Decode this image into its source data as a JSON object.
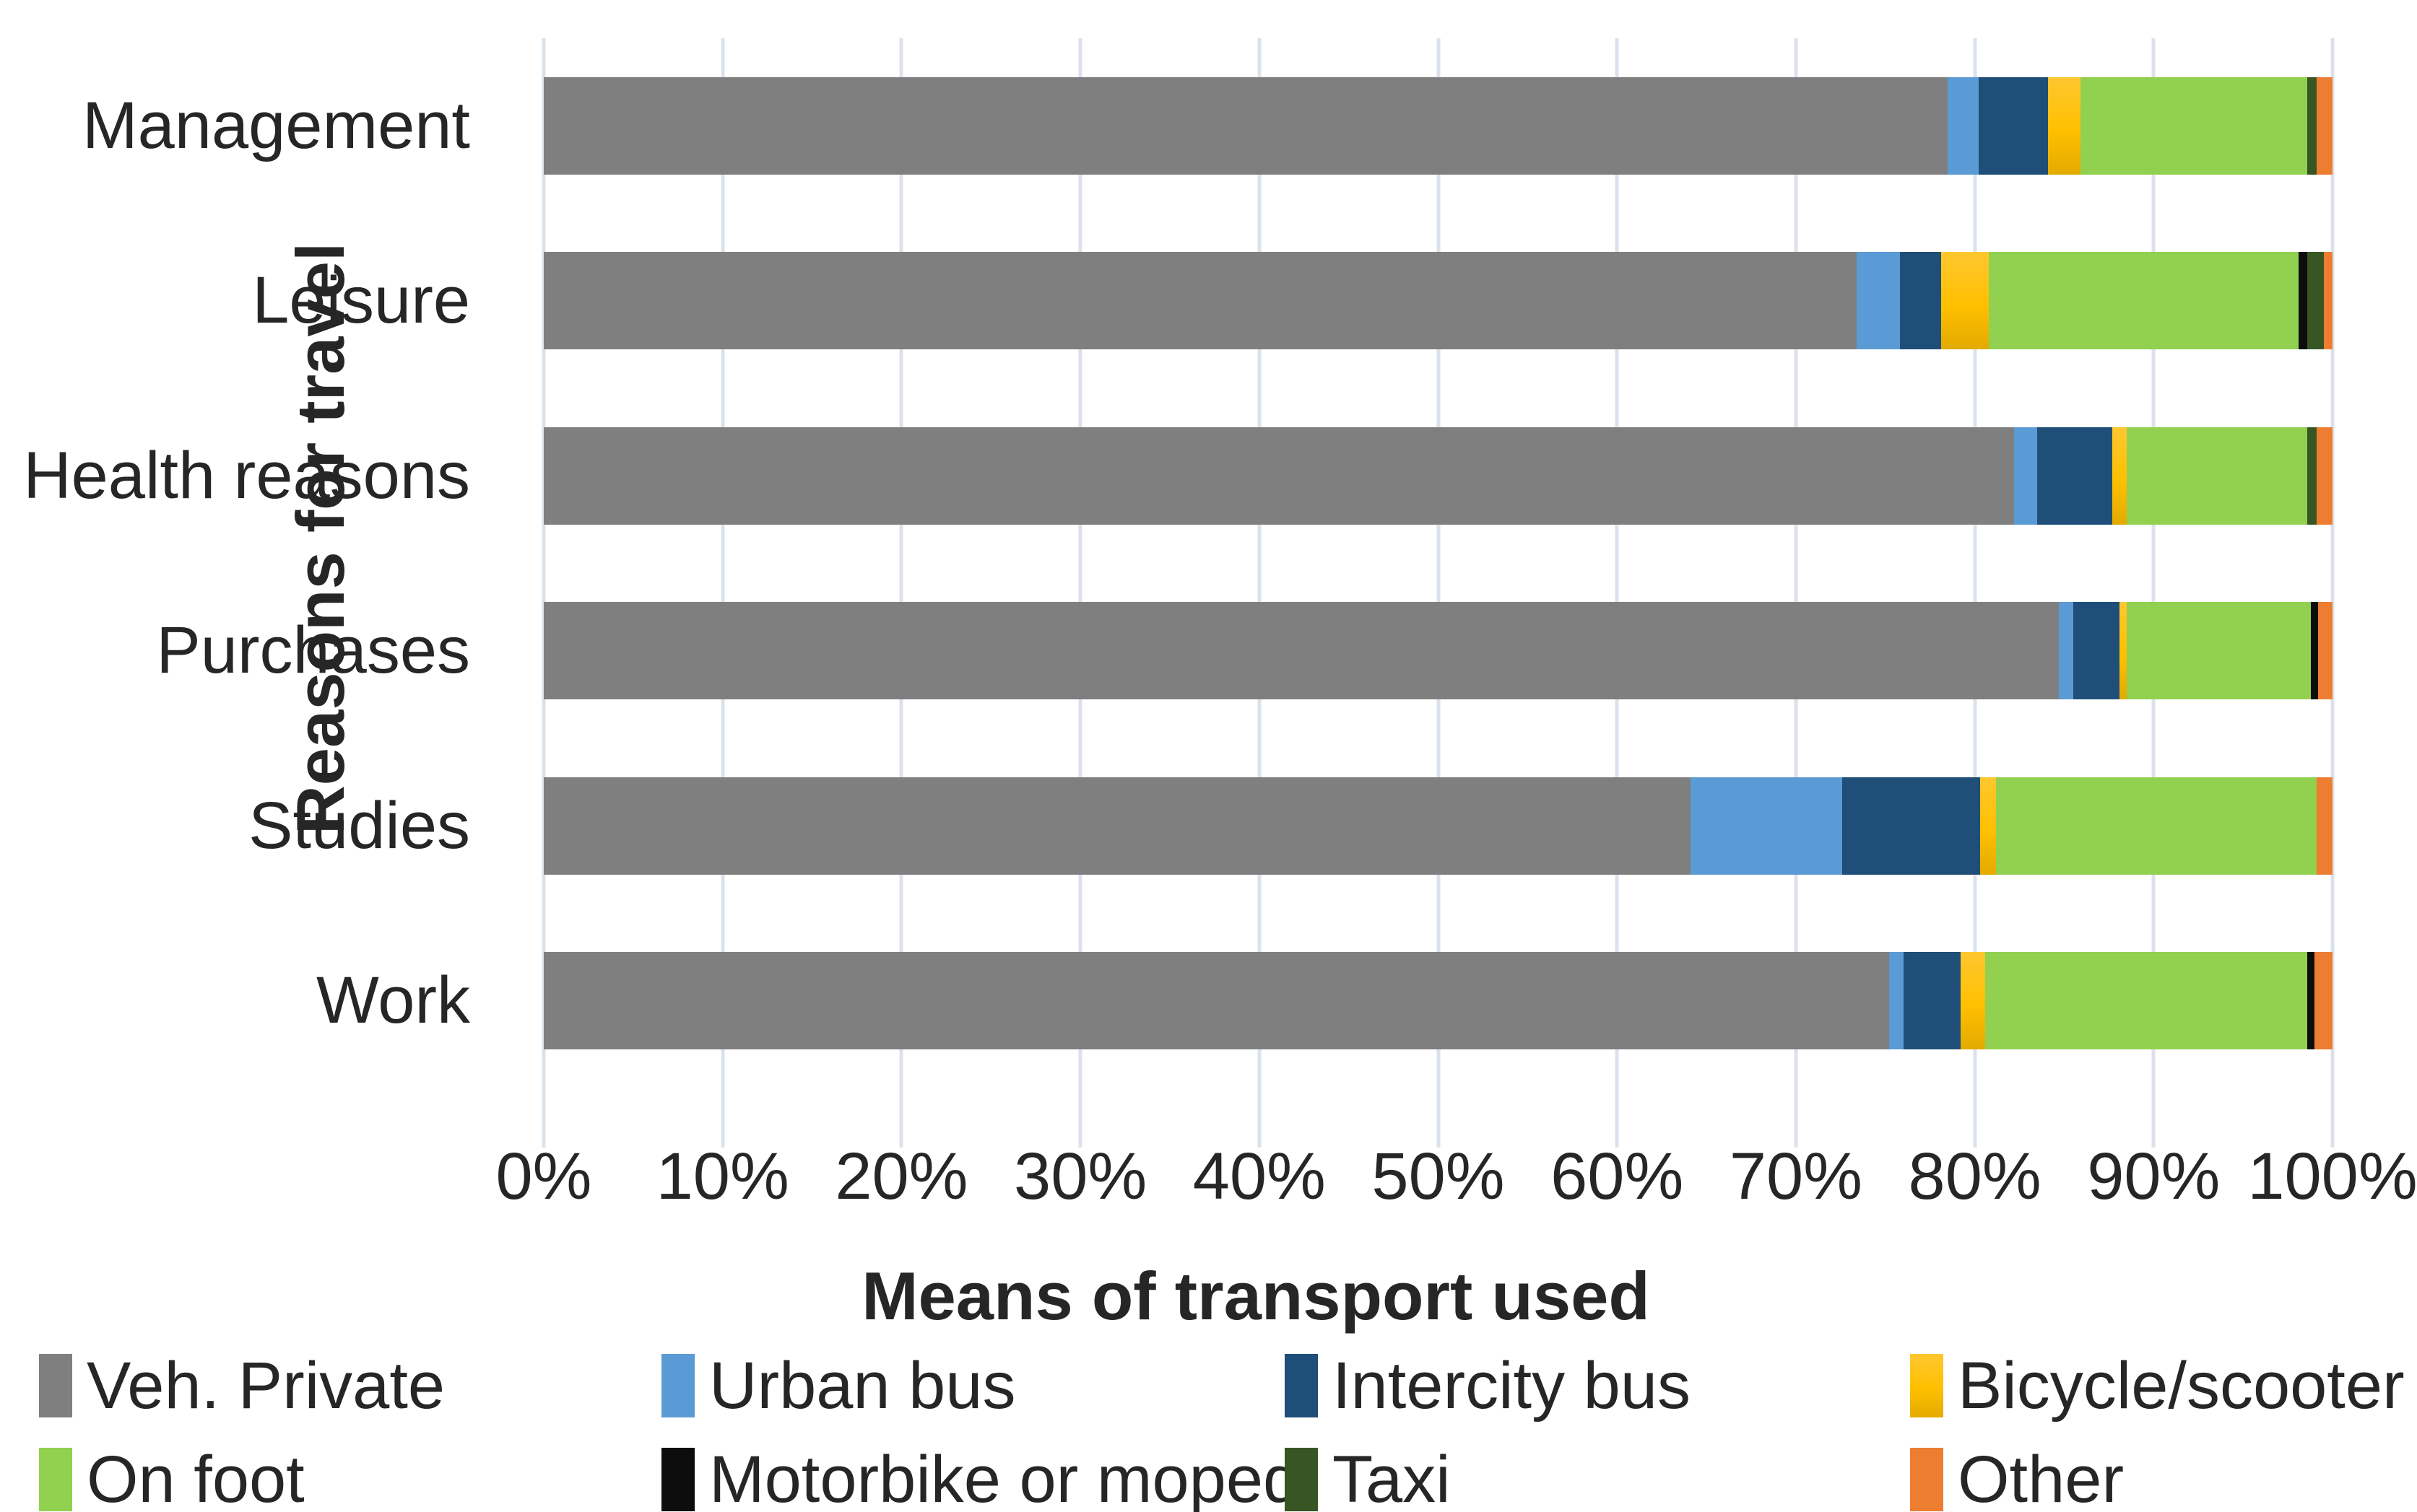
{
  "chart_data": {
    "type": "bar",
    "orientation": "horizontal",
    "stacked": true,
    "unit": "percent",
    "title": "",
    "xlabel": "Means of transport used",
    "ylabel": "Reasons for travel",
    "xlim": [
      0,
      100
    ],
    "grid": true,
    "legend_position": "bottom",
    "x_ticks": [
      "0%",
      "10%",
      "20%",
      "30%",
      "40%",
      "50%",
      "60%",
      "70%",
      "80%",
      "90%",
      "100%"
    ],
    "categories": [
      "Management",
      "Leisure",
      "Health reasons",
      "Purchases",
      "Studies",
      "Work"
    ],
    "series": [
      {
        "name": "Veh. Private",
        "color": "#7F7F7F",
        "values": [
          78.5,
          73.4,
          82.2,
          84.7,
          64.1,
          75.2
        ]
      },
      {
        "name": "Urban bus",
        "color": "#5B9BD5",
        "values": [
          1.7,
          2.4,
          1.3,
          0.8,
          8.5,
          0.8
        ]
      },
      {
        "name": "Intercity bus",
        "color": "#1F4E79",
        "values": [
          3.9,
          2.3,
          4.2,
          2.6,
          7.7,
          3.2
        ]
      },
      {
        "name": "Bicycle/scooter",
        "color": "#FFC000",
        "values": [
          1.8,
          2.7,
          0.8,
          0.4,
          0.9,
          1.4
        ]
      },
      {
        "name": "On foot",
        "color": "#92D050",
        "values": [
          12.7,
          17.3,
          10.1,
          10.3,
          17.9,
          18.0
        ]
      },
      {
        "name": "Motorbike or moped",
        "color": "#0D0D0D",
        "values": [
          0.0,
          0.5,
          0.0,
          0.4,
          0.0,
          0.4
        ]
      },
      {
        "name": "Taxi",
        "color": "#375623",
        "values": [
          0.5,
          0.9,
          0.5,
          0.0,
          0.0,
          0.0
        ]
      },
      {
        "name": "Other",
        "color": "#ED7D31",
        "values": [
          0.9,
          0.5,
          0.9,
          0.8,
          0.9,
          1.0
        ]
      }
    ],
    "colors": {
      "gridline": "#DCE2EB",
      "text": "#262626",
      "background": "#FFFFFF"
    }
  }
}
